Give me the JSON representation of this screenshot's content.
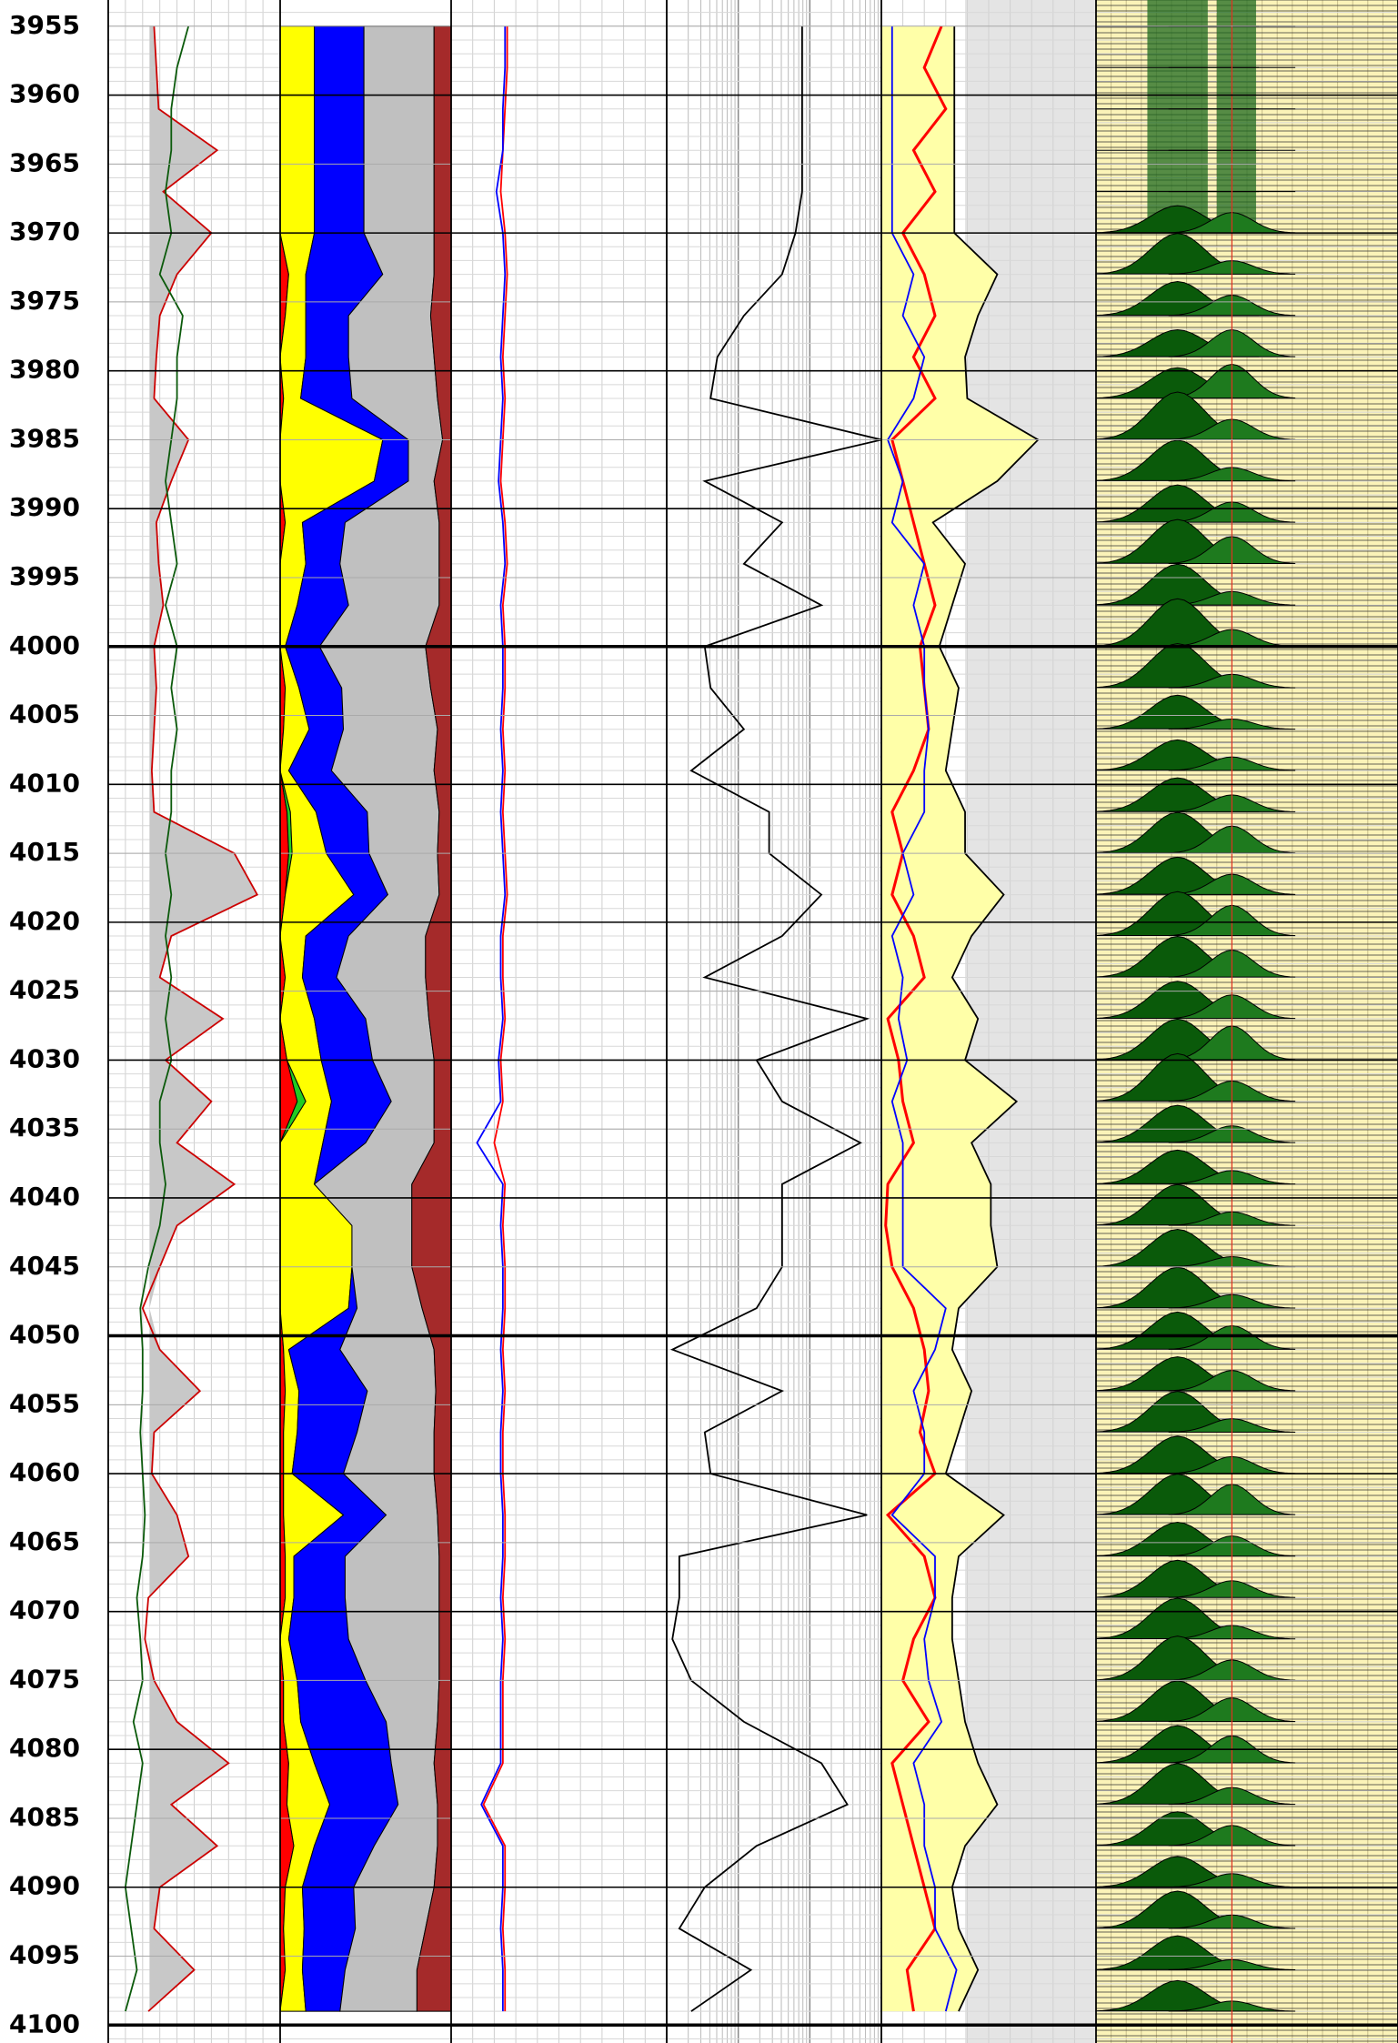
{
  "chart_data": {
    "type": "well-log",
    "depth": [
      3955,
      3958,
      3961,
      3964,
      3967,
      3970,
      3973,
      3976,
      3979,
      3982,
      3985,
      3988,
      3991,
      3994,
      3997,
      4000,
      4003,
      4006,
      4009,
      4012,
      4015,
      4018,
      4021,
      4024,
      4027,
      4030,
      4033,
      4036,
      4039,
      4042,
      4045,
      4048,
      4051,
      4054,
      4057,
      4060,
      4063,
      4066,
      4069,
      4072,
      4075,
      4078,
      4081,
      4084,
      4087,
      4090,
      4093,
      4096,
      4099
    ],
    "ylim": [
      3953.1,
      4101.3
    ],
    "yticks": [
      3955,
      3960,
      3965,
      3970,
      3975,
      3980,
      3985,
      3990,
      3995,
      4000,
      4005,
      4010,
      4015,
      4020,
      4025,
      4030,
      4035,
      4040,
      4045,
      4050,
      4055,
      4060,
      4065,
      4070,
      4075,
      4080,
      4085,
      4090,
      4095,
      4100
    ],
    "grid": true,
    "tracks": [
      {
        "type": "line",
        "xlim": [
          0,
          150
        ],
        "cutoff": 36,
        "series": [
          {
            "color": "#cc0000",
            "fill": "#c8c8c8",
            "values": [
              40,
              42,
              44,
              95,
              48,
              90,
              60,
              45,
              42,
              40,
              70,
              55,
              42,
              44,
              48,
              40,
              42,
              40,
              38,
              40,
              110,
              130,
              55,
              45,
              100,
              50,
              90,
              60,
              110,
              60,
              45,
              30,
              45,
              80,
              40,
              38,
              60,
              70,
              35,
              32,
              40,
              60,
              105,
              55,
              95,
              45,
              40,
              75,
              35
            ]
          },
          {
            "color": "#0b5a0b",
            "values": [
              70,
              60,
              55,
              55,
              50,
              55,
              45,
              65,
              60,
              60,
              55,
              50,
              55,
              60,
              50,
              60,
              55,
              60,
              55,
              55,
              50,
              55,
              50,
              55,
              50,
              55,
              45,
              45,
              50,
              45,
              35,
              28,
              30,
              30,
              28,
              30,
              32,
              30,
              25,
              28,
              30,
              22,
              30,
              25,
              20,
              15,
              20,
              25,
              15
            ]
          }
        ]
      },
      {
        "type": "stacked-area",
        "xlim": [
          0,
          100
        ],
        "series": [
          {
            "color": "#ff0000",
            "values": [
              0,
              0,
              0,
              0,
              0,
              0,
              5,
              3,
              0,
              2,
              0,
              0,
              3,
              0,
              0,
              0,
              3,
              2,
              0,
              4,
              5,
              3,
              0,
              3,
              0,
              4,
              10,
              0,
              0,
              0,
              0,
              0,
              2,
              3,
              2,
              2,
              2,
              3,
              3,
              0,
              2,
              2,
              5,
              4,
              8,
              3,
              2,
              3,
              0
            ]
          },
          {
            "color": "#22cc22",
            "values": [
              0,
              0,
              0,
              0,
              0,
              0,
              0,
              0,
              0,
              0,
              0,
              0,
              0,
              0,
              0,
              0,
              0,
              0,
              0,
              2,
              2,
              0,
              0,
              0,
              0,
              0,
              5,
              0,
              0,
              0,
              0,
              0,
              0,
              0,
              0,
              0,
              0,
              0,
              0,
              0,
              0,
              0,
              0,
              0,
              0,
              0,
              0,
              0,
              0
            ]
          },
          {
            "color": "#ffff00",
            "values": [
              20,
              20,
              20,
              20,
              20,
              20,
              10,
              12,
              15,
              10,
              60,
              55,
              10,
              15,
              10,
              3,
              8,
              15,
              5,
              15,
              20,
              40,
              15,
              10,
              20,
              20,
              15,
              25,
              20,
              42,
              42,
              40,
              3,
              8,
              8,
              5,
              35,
              5,
              5,
              5,
              8,
              10,
              15,
              25,
              12,
              10,
              12,
              10,
              15
            ]
          },
          {
            "color": "#0000ff",
            "values": [
              29,
              29,
              29,
              29,
              29,
              29,
              45,
              25,
              25,
              30,
              15,
              20,
              25,
              20,
              30,
              20,
              25,
              20,
              25,
              30,
              25,
              20,
              25,
              20,
              30,
              30,
              35,
              25,
              0,
              0,
              0,
              5,
              30,
              40,
              35,
              30,
              25,
              30,
              30,
              35,
              40,
              50,
              45,
              40,
              35,
              30,
              30,
              25,
              20
            ]
          },
          {
            "color": "#c0c0c0",
            "values": [
              41,
              41,
              41,
              41,
              41,
              41,
              30,
              48,
              50,
              50,
              20,
              15,
              55,
              58,
              53,
              62,
              52,
              55,
              60,
              42,
              40,
              30,
              45,
              52,
              37,
              36,
              25,
              40,
              57,
              35,
              35,
              38,
              55,
              40,
              45,
              53,
              30,
              55,
              55,
              53,
              43,
              30,
              25,
              23,
              37,
              47,
              41,
              42,
              45
            ]
          },
          {
            "color": "#a52a2a",
            "values": [
              10,
              10,
              10,
              10,
              10,
              10,
              10,
              12,
              10,
              8,
              5,
              10,
              7,
              7,
              7,
              15,
              12,
              8,
              10,
              7,
              8,
              7,
              15,
              15,
              13,
              10,
              10,
              10,
              23,
              23,
              23,
              17,
              10,
              9,
              10,
              10,
              8,
              7,
              7,
              7,
              7,
              8,
              10,
              8,
              8,
              10,
              15,
              20,
              20
            ]
          }
        ]
      },
      {
        "type": "line",
        "xlim": [
          0,
          100
        ],
        "series": [
          {
            "color": "#ff0000",
            "values": [
              26,
              26,
              25,
              24,
              23,
              25,
              26,
              25,
              24,
              25,
              24,
              23,
              25,
              26,
              24,
              25,
              25,
              24,
              25,
              24,
              25,
              26,
              24,
              24,
              25,
              23,
              24,
              20,
              25,
              24,
              25,
              25,
              24,
              25,
              24,
              24,
              25,
              25,
              24,
              25,
              24,
              24,
              24,
              15,
              25,
              25,
              24,
              25,
              25
            ]
          },
          {
            "color": "#0000ff",
            "values": [
              25,
              25,
              24,
              24,
              21,
              24,
              25,
              24,
              23,
              24,
              23,
              22,
              24,
              25,
              23,
              24,
              24,
              23,
              24,
              23,
              24,
              25,
              23,
              23,
              24,
              22,
              23,
              12,
              24,
              23,
              24,
              24,
              23,
              24,
              23,
              23,
              24,
              24,
              23,
              24,
              23,
              23,
              23,
              14,
              24,
              24,
              23,
              24,
              24
            ]
          }
        ]
      },
      {
        "type": "line",
        "log": true,
        "xlim": [
          1,
          1000
        ],
        "series": [
          {
            "color": "#000000",
            "values": [
              78,
              78,
              78,
              78,
              78,
              63,
              41,
              12,
              5.1,
              4.1,
              1000,
              3.4,
              41,
              12,
              145,
              3.4,
              4.1,
              12,
              2.2,
              27,
              27,
              145,
              41,
              3.4,
              630,
              18,
              41,
              510,
              41,
              41,
              41,
              18,
              1.2,
              41,
              3.4,
              4.1,
              630,
              1.5,
              1.5,
              1.2,
              2.2,
              12,
              145,
              335,
              18,
              3.4,
              1.5,
              15,
              2.2
            ]
          }
        ]
      },
      {
        "type": "line",
        "xlim": [
          0,
          100
        ],
        "series": [
          {
            "color": "#000000",
            "fill": "#ffffa8",
            "values": [
              34,
              34,
              34,
              34,
              34,
              34,
              54,
              45,
              39,
              40,
              73,
              54,
              24,
              39,
              33,
              27,
              36,
              33,
              30,
              39,
              39,
              57,
              42,
              33,
              45,
              39,
              63,
              42,
              51,
              51,
              54,
              36,
              33,
              42,
              36,
              30,
              57,
              36,
              33,
              33,
              36,
              39,
              45,
              54,
              39,
              33,
              36,
              45,
              36
            ]
          },
          {
            "color": "#ff0000",
            "width": 3,
            "values": [
              28,
              20,
              30,
              15,
              25,
              10,
              20,
              25,
              15,
              25,
              5,
              10,
              15,
              20,
              25,
              18,
              20,
              22,
              15,
              5,
              10,
              5,
              15,
              20,
              3,
              8,
              10,
              15,
              3,
              2,
              5,
              15,
              20,
              22,
              18,
              25,
              3,
              20,
              25,
              15,
              10,
              22,
              5,
              10,
              15,
              20,
              25,
              12,
              15
            ]
          },
          {
            "color": "#0000ff",
            "values": [
              5,
              5,
              5,
              5,
              5,
              5,
              15,
              10,
              20,
              15,
              3,
              10,
              5,
              20,
              15,
              20,
              20,
              22,
              20,
              20,
              10,
              15,
              5,
              10,
              8,
              12,
              5,
              10,
              10,
              10,
              10,
              30,
              25,
              15,
              20,
              20,
              5,
              25,
              25,
              20,
              22,
              28,
              15,
              20,
              20,
              25,
              25,
              35,
              30
            ]
          }
        ]
      },
      {
        "type": "waterfall",
        "xlim": [
          0,
          100
        ],
        "series": [
          {
            "color": "#0a5a0a",
            "values": [
              0,
              0,
              0,
              0,
              0,
              40,
              60,
              50,
              40,
              45,
              70,
              60,
              55,
              65,
              60,
              70,
              65,
              50,
              45,
              50,
              60,
              55,
              65,
              60,
              55,
              60,
              70,
              55,
              50,
              60,
              55,
              60,
              55,
              50,
              60,
              55,
              60,
              50,
              55,
              60,
              65,
              60,
              55,
              60,
              50,
              45,
              55,
              50,
              45
            ]
          },
          {
            "color": "#1e7a1e",
            "values": [
              0,
              0,
              0,
              0,
              0,
              30,
              20,
              30,
              40,
              50,
              30,
              20,
              30,
              40,
              20,
              25,
              20,
              15,
              20,
              25,
              40,
              30,
              45,
              40,
              35,
              50,
              30,
              25,
              20,
              20,
              15,
              20,
              35,
              30,
              20,
              25,
              45,
              30,
              25,
              20,
              30,
              35,
              40,
              25,
              30,
              20,
              20,
              15,
              15
            ]
          }
        ]
      }
    ]
  }
}
